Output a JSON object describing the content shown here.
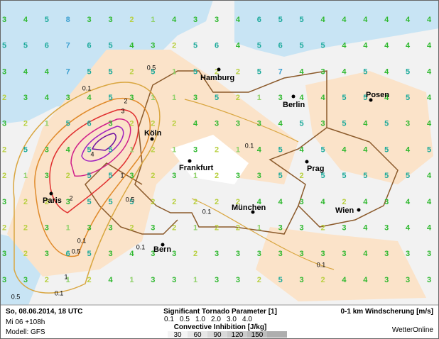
{
  "map": {
    "wind_grid": [
      [
        3,
        4,
        5,
        8,
        3,
        3,
        2,
        1,
        4,
        3,
        3,
        4,
        6,
        5,
        5,
        4,
        4,
        4,
        4,
        4,
        4
      ],
      [
        5,
        5,
        6,
        7,
        6,
        5,
        4,
        3,
        2,
        5,
        6,
        4,
        5,
        6,
        5,
        5,
        4,
        4,
        4,
        4,
        4
      ],
      [
        3,
        4,
        4,
        7,
        5,
        5,
        2,
        5,
        1,
        5,
        2,
        2,
        5,
        7,
        4,
        3,
        4,
        5,
        4,
        5,
        4
      ],
      [
        2,
        3,
        4,
        3,
        4,
        5,
        3,
        1,
        1,
        3,
        5,
        2,
        1,
        3,
        4,
        4,
        5,
        5,
        4,
        5,
        4
      ],
      [
        3,
        2,
        1,
        5,
        6,
        3,
        2,
        2,
        2,
        4,
        3,
        3,
        3,
        4,
        5,
        3,
        5,
        4,
        5,
        3,
        4
      ],
      [
        2,
        5,
        3,
        4,
        5,
        5,
        1,
        2,
        1,
        3,
        2,
        1,
        4,
        5,
        4,
        5,
        4,
        4,
        5,
        4,
        5
      ],
      [
        2,
        1,
        3,
        2,
        5,
        5,
        3,
        2,
        3,
        1,
        2,
        3,
        3,
        5,
        2,
        5,
        5,
        5,
        5,
        5,
        4
      ],
      [
        3,
        2,
        2,
        3,
        5,
        5,
        5,
        2,
        2,
        2,
        2,
        2,
        4,
        4,
        3,
        4,
        2,
        4,
        3,
        4,
        4
      ],
      [
        2,
        2,
        3,
        1,
        3,
        3,
        2,
        3,
        2,
        1,
        2,
        2,
        1,
        3,
        3,
        2,
        3,
        4,
        3,
        4,
        4
      ],
      [
        3,
        2,
        3,
        6,
        5,
        3,
        4,
        3,
        3,
        2,
        3,
        3,
        3,
        3,
        3,
        3,
        3,
        4,
        3,
        3,
        3
      ],
      [
        3,
        3,
        2,
        1,
        2,
        4,
        1,
        3,
        3,
        1,
        3,
        3,
        2,
        5,
        3,
        2,
        4,
        4,
        3,
        3,
        3
      ]
    ],
    "cities": [
      "Hamburg",
      "Berlin",
      "Posen",
      "Köln",
      "Frankfurt",
      "Prag",
      "Paris",
      "München",
      "Wien",
      "Bern"
    ],
    "contour_labels": [
      "0.5",
      "0.1",
      "2",
      "3",
      "4",
      "1",
      "2",
      "0.5",
      "0.1",
      "0.5",
      "0.1",
      "1",
      "0.1",
      "0.5",
      "0.1",
      "0.1",
      "0.1"
    ]
  },
  "footer": {
    "date": "So, 08.06.2014, 18 UTC",
    "run": "Mi 06 +108h",
    "model": "Modell: GFS",
    "stp_title": "Significant Tornado Parameter [1]",
    "stp_levels": [
      {
        "label": "0.1",
        "color": "#d9a640"
      },
      {
        "label": "0.5",
        "color": "#e08a2a"
      },
      {
        "label": "1.0",
        "color": "#e03030"
      },
      {
        "label": "2.0",
        "color": "#d0208a"
      },
      {
        "label": "3.0",
        "color": "#a020c0"
      },
      {
        "label": "4.0",
        "color": "#7010a0"
      }
    ],
    "cin_title": "Convective Inhibition [J/kg]",
    "cin_levels": [
      30,
      60,
      90,
      120,
      150
    ],
    "shear_title": "0-1 km Windscherung [m/s]",
    "brand": "WetterOnline"
  }
}
